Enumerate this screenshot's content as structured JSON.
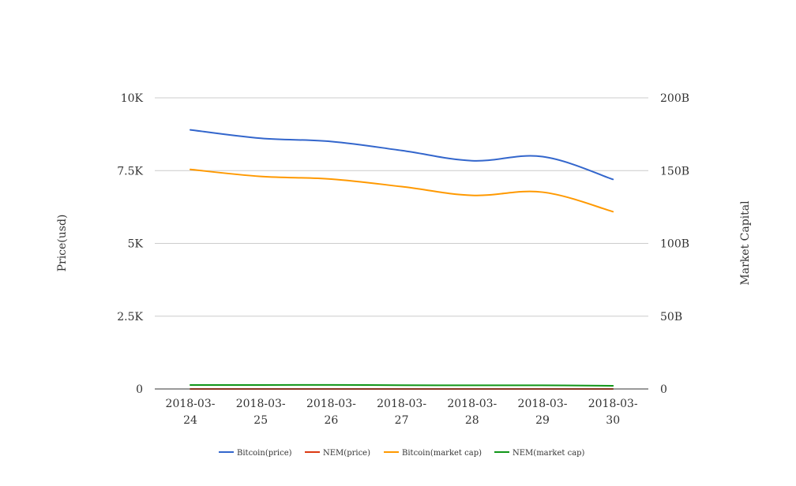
{
  "chart_data": {
    "type": "line",
    "categories": [
      "2018-03-24",
      "2018-03-25",
      "2018-03-26",
      "2018-03-27",
      "2018-03-28",
      "2018-03-29",
      "2018-03-30"
    ],
    "category_labels": [
      [
        "2018-03-",
        "24"
      ],
      [
        "2018-03-",
        "25"
      ],
      [
        "2018-03-",
        "26"
      ],
      [
        "2018-03-",
        "27"
      ],
      [
        "2018-03-",
        "28"
      ],
      [
        "2018-03-",
        "29"
      ],
      [
        "2018-03-",
        "30"
      ]
    ],
    "y_left": {
      "label": "Price(usd)",
      "min": 0,
      "max": 10000,
      "ticks": [
        0,
        2500,
        5000,
        7500,
        10000
      ],
      "tick_labels": [
        "0",
        "2.5K",
        "5K",
        "7.5K",
        "10K"
      ]
    },
    "y_right": {
      "label": "Market Capital",
      "min": 0,
      "max": 200000000000,
      "ticks": [
        0,
        50000000000,
        100000000000,
        150000000000,
        200000000000
      ],
      "tick_labels": [
        "0",
        "50B",
        "100B",
        "150B",
        "200B"
      ]
    },
    "grid": true,
    "legend_position": "bottom",
    "series": [
      {
        "name": "Bitcoin(price)",
        "axis": "left",
        "color": "#3366cc",
        "values": [
          8900,
          8610,
          8500,
          8190,
          7840,
          7980,
          7200
        ]
      },
      {
        "name": "NEM(price)",
        "axis": "left",
        "color": "#dc3912",
        "values": [
          0.34,
          0.33,
          0.34,
          0.32,
          0.3,
          0.3,
          0.26
        ]
      },
      {
        "name": "Bitcoin(market cap)",
        "axis": "right",
        "color": "#ff9900",
        "values": [
          150800000000,
          146000000000,
          144200000000,
          139000000000,
          133000000000,
          135200000000,
          121800000000
        ]
      },
      {
        "name": "NEM(market cap)",
        "axis": "right",
        "color": "#109618",
        "values": [
          2700000000,
          2700000000,
          2800000000,
          2600000000,
          2500000000,
          2500000000,
          2200000000
        ]
      }
    ]
  }
}
